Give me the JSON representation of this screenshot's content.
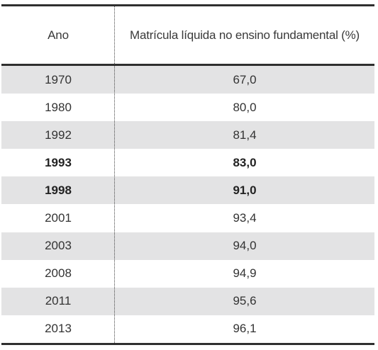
{
  "table": {
    "headers": {
      "year": "Ano",
      "value": "Matrícula líquida no ensino fundamental (%)"
    },
    "rows": [
      {
        "year": "1970",
        "value": "67,0",
        "bold": false,
        "shaded": true
      },
      {
        "year": "1980",
        "value": "80,0",
        "bold": false,
        "shaded": false
      },
      {
        "year": "1992",
        "value": "81,4",
        "bold": false,
        "shaded": true
      },
      {
        "year": "1993",
        "value": "83,0",
        "bold": true,
        "shaded": false
      },
      {
        "year": "1998",
        "value": "91,0",
        "bold": true,
        "shaded": true
      },
      {
        "year": "2001",
        "value": "93,4",
        "bold": false,
        "shaded": false
      },
      {
        "year": "2003",
        "value": "94,0",
        "bold": false,
        "shaded": true
      },
      {
        "year": "2008",
        "value": "94,9",
        "bold": false,
        "shaded": false
      },
      {
        "year": "2011",
        "value": "95,6",
        "bold": false,
        "shaded": true
      },
      {
        "year": "2013",
        "value": "96,1",
        "bold": false,
        "shaded": false
      }
    ]
  },
  "colors": {
    "shaded_row": "#e3e3e4",
    "rule": "#2f2f2f",
    "text": "#333333"
  }
}
